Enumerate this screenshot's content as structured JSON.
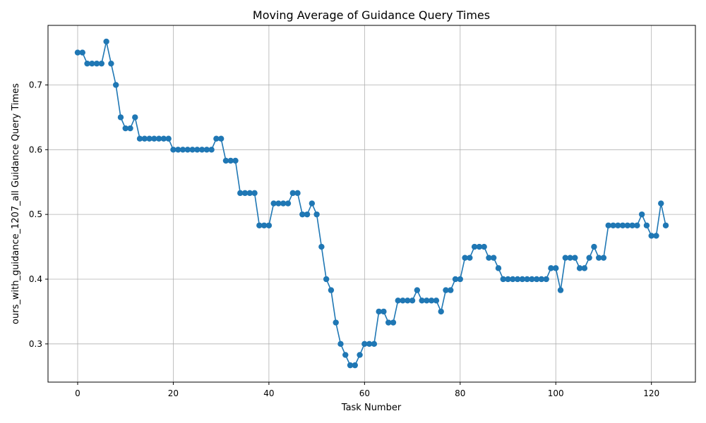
{
  "chart_data": {
    "type": "line",
    "title": "Moving Average of Guidance Query Times",
    "xlabel": "Task Number",
    "ylabel": "ours_with_guidance_1207_all Guidance Query Times",
    "xlim": [
      -6.2,
      129.2
    ],
    "ylim": [
      0.241,
      0.792
    ],
    "xticks": [
      0,
      20,
      40,
      60,
      80,
      100,
      120
    ],
    "yticks": [
      0.3,
      0.4,
      0.5,
      0.6,
      0.7
    ],
    "ytick_labels": [
      "0.3",
      "0.4",
      "0.5",
      "0.6",
      "0.7"
    ],
    "grid": true,
    "series_color": "#1f77b4",
    "marker": "circle",
    "x": [
      0,
      1,
      2,
      3,
      4,
      5,
      6,
      7,
      8,
      9,
      10,
      11,
      12,
      13,
      14,
      15,
      16,
      17,
      18,
      19,
      20,
      21,
      22,
      23,
      24,
      25,
      26,
      27,
      28,
      29,
      30,
      31,
      32,
      33,
      34,
      35,
      36,
      37,
      38,
      39,
      40,
      41,
      42,
      43,
      44,
      45,
      46,
      47,
      48,
      49,
      50,
      51,
      52,
      53,
      54,
      55,
      56,
      57,
      58,
      59,
      60,
      61,
      62,
      63,
      64,
      65,
      66,
      67,
      68,
      69,
      70,
      71,
      72,
      73,
      74,
      75,
      76,
      77,
      78,
      79,
      80,
      81,
      82,
      83,
      84,
      85,
      86,
      87,
      88,
      89,
      90,
      91,
      92,
      93,
      94,
      95,
      96,
      97,
      98,
      99,
      100,
      101,
      102,
      103,
      104,
      105,
      106,
      107,
      108,
      109,
      110,
      111,
      112,
      113,
      114,
      115,
      116,
      117,
      118,
      119,
      120,
      121,
      122,
      123
    ],
    "y": [
      0.75,
      0.75,
      0.733,
      0.733,
      0.733,
      0.733,
      0.767,
      0.733,
      0.7,
      0.65,
      0.633,
      0.633,
      0.65,
      0.617,
      0.617,
      0.617,
      0.617,
      0.617,
      0.617,
      0.617,
      0.6,
      0.6,
      0.6,
      0.6,
      0.6,
      0.6,
      0.6,
      0.6,
      0.6,
      0.617,
      0.617,
      0.583,
      0.583,
      0.583,
      0.533,
      0.533,
      0.533,
      0.533,
      0.483,
      0.483,
      0.483,
      0.517,
      0.517,
      0.517,
      0.517,
      0.533,
      0.533,
      0.5,
      0.5,
      0.517,
      0.5,
      0.45,
      0.4,
      0.383,
      0.333,
      0.3,
      0.283,
      0.267,
      0.267,
      0.283,
      0.3,
      0.3,
      0.3,
      0.35,
      0.35,
      0.333,
      0.333,
      0.367,
      0.367,
      0.367,
      0.367,
      0.383,
      0.367,
      0.367,
      0.367,
      0.367,
      0.35,
      0.383,
      0.383,
      0.4,
      0.4,
      0.433,
      0.433,
      0.45,
      0.45,
      0.45,
      0.433,
      0.433,
      0.417,
      0.4,
      0.4,
      0.4,
      0.4,
      0.4,
      0.4,
      0.4,
      0.4,
      0.4,
      0.4,
      0.417,
      0.417,
      0.383,
      0.433,
      0.433,
      0.433,
      0.417,
      0.417,
      0.433,
      0.45,
      0.433,
      0.433,
      0.483,
      0.483,
      0.483,
      0.483,
      0.483,
      0.483,
      0.483,
      0.5,
      0.483,
      0.467,
      0.467,
      0.517,
      0.483
    ]
  }
}
